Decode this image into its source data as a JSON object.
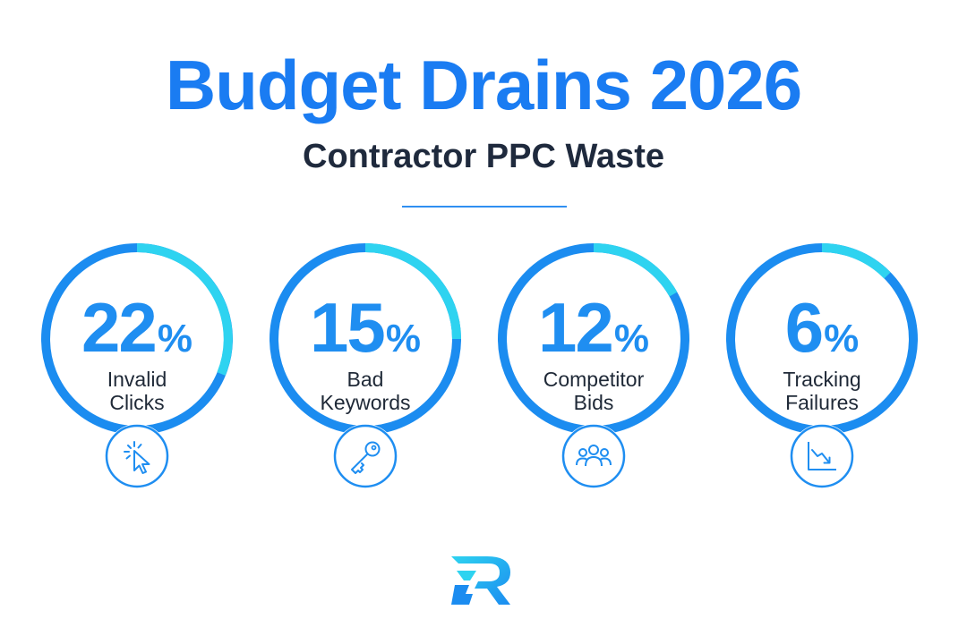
{
  "header": {
    "title": "Budget Drains 2026",
    "subtitle": "Contractor PPC Waste"
  },
  "colors": {
    "title": "#1a7cf2",
    "subtitle": "#1f2a3d",
    "accent": "#1f8ef1",
    "ring_dark": "#1b8cf0",
    "ring_light": "#2ed3f0",
    "label": "#1f2937",
    "divider": "#2f8ff2"
  },
  "stats": [
    {
      "value": "22",
      "unit": "%",
      "label_line1": "Invalid",
      "label_line2": "Clicks",
      "icon": "cursor-click-icon"
    },
    {
      "value": "15",
      "unit": "%",
      "label_line1": "Bad",
      "label_line2": "Keywords",
      "icon": "key-icon"
    },
    {
      "value": "12",
      "unit": "%",
      "label_line1": "Competitor",
      "label_line2": "Bids",
      "icon": "people-group-icon"
    },
    {
      "value": "6",
      "unit": "%",
      "label_line1": "Tracking",
      "label_line2": "Failures",
      "icon": "chart-decline-icon"
    }
  ]
}
